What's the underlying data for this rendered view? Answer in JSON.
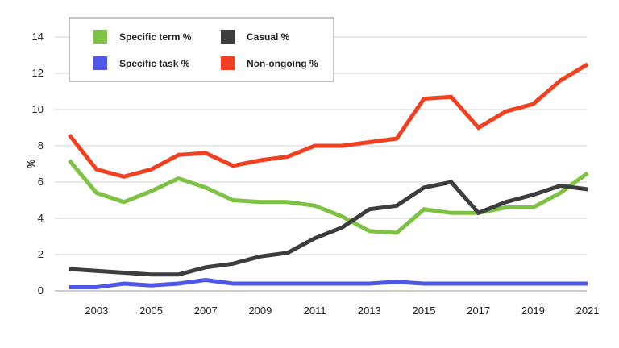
{
  "chart_data": {
    "type": "line",
    "ylabel": "%",
    "xlabel": "",
    "ylim": [
      0,
      14
    ],
    "yticks": [
      0,
      2,
      4,
      6,
      8,
      10,
      12,
      14
    ],
    "xlim": [
      2002,
      2021.5
    ],
    "xticks": [
      "2003",
      "2005",
      "2007",
      "2009",
      "2011",
      "2013",
      "2015",
      "2017",
      "2019",
      "2021"
    ],
    "grid": "horizontal",
    "legend_position": "top-left",
    "x": [
      2002,
      2003,
      2004,
      2005,
      2006,
      2007,
      2008,
      2009,
      2010,
      2011,
      2012,
      2013,
      2014,
      2015,
      2016,
      2017,
      2018,
      2019,
      2020,
      2021
    ],
    "series": [
      {
        "name": "Specific term %",
        "color": "#7dc242",
        "values": [
          7.2,
          5.4,
          4.9,
          5.5,
          6.2,
          5.7,
          5.0,
          4.9,
          4.9,
          4.7,
          4.1,
          3.3,
          3.2,
          4.5,
          4.3,
          4.3,
          4.6,
          4.6,
          5.4,
          6.5
        ]
      },
      {
        "name": "Specific task %",
        "color": "#4f57e8",
        "values": [
          0.2,
          0.2,
          0.4,
          0.3,
          0.4,
          0.6,
          0.4,
          0.4,
          0.4,
          0.4,
          0.4,
          0.4,
          0.5,
          0.4,
          0.4,
          0.4,
          0.4,
          0.4,
          0.4,
          0.4
        ]
      },
      {
        "name": "Casual %",
        "color": "#3d3d3d",
        "values": [
          1.2,
          1.1,
          1.0,
          0.9,
          0.9,
          1.3,
          1.5,
          1.9,
          2.1,
          2.9,
          3.5,
          4.5,
          4.7,
          5.7,
          6.0,
          4.3,
          4.9,
          5.3,
          5.8,
          5.6
        ]
      },
      {
        "name": "Non-ongoing %",
        "color": "#f0401f",
        "values": [
          8.6,
          6.7,
          6.3,
          6.7,
          7.5,
          7.6,
          6.9,
          7.2,
          7.4,
          8.0,
          8.0,
          8.2,
          8.4,
          10.6,
          10.7,
          9.0,
          9.9,
          10.3,
          11.6,
          12.5
        ]
      }
    ]
  }
}
